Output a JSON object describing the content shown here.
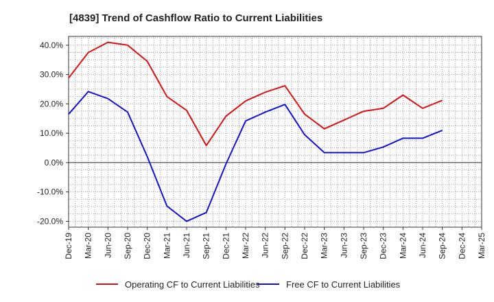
{
  "chart_data": {
    "type": "line",
    "title": "[4839]  Trend of Cashflow Ratio to Current Liabilities",
    "xlabel": "",
    "ylabel": "",
    "categories": [
      "Dec-19",
      "Mar-20",
      "Jun-20",
      "Sep-20",
      "Dec-20",
      "Mar-21",
      "Jun-21",
      "Sep-21",
      "Dec-21",
      "Mar-22",
      "Jun-22",
      "Sep-22",
      "Dec-22",
      "Mar-23",
      "Jun-23",
      "Sep-23",
      "Dec-23",
      "Mar-24",
      "Jun-24",
      "Sep-24",
      "Dec-24",
      "Mar-25"
    ],
    "y_ticks": [
      40,
      30,
      20,
      10,
      0,
      -10,
      -20
    ],
    "y_tick_labels": [
      "40.0%",
      "30.0%",
      "20.0%",
      "10.0%",
      "0.0%",
      "-10.0%",
      "-20.0%"
    ],
    "ylim": [
      -22,
      43
    ],
    "grid": true,
    "legend_position": "bottom",
    "series": [
      {
        "name": "Operating CF to Current Liabilities",
        "color": "#dd1111",
        "values": [
          28.8,
          37.5,
          41.0,
          40.0,
          34.5,
          22.5,
          17.8,
          5.8,
          15.8,
          21.0,
          24.0,
          26.2,
          16.5,
          11.5,
          14.5,
          17.5,
          18.5,
          23.0,
          18.5,
          21.2,
          null,
          null
        ]
      },
      {
        "name": "Free CF to Current Liabilities",
        "color": "#1111dd",
        "values": [
          16.5,
          24.2,
          21.8,
          17.2,
          2.0,
          -14.8,
          -20.0,
          -17.0,
          -0.5,
          14.2,
          17.2,
          19.8,
          9.5,
          3.4,
          3.4,
          3.4,
          5.3,
          8.3,
          8.3,
          11.0,
          null,
          null
        ]
      }
    ]
  }
}
